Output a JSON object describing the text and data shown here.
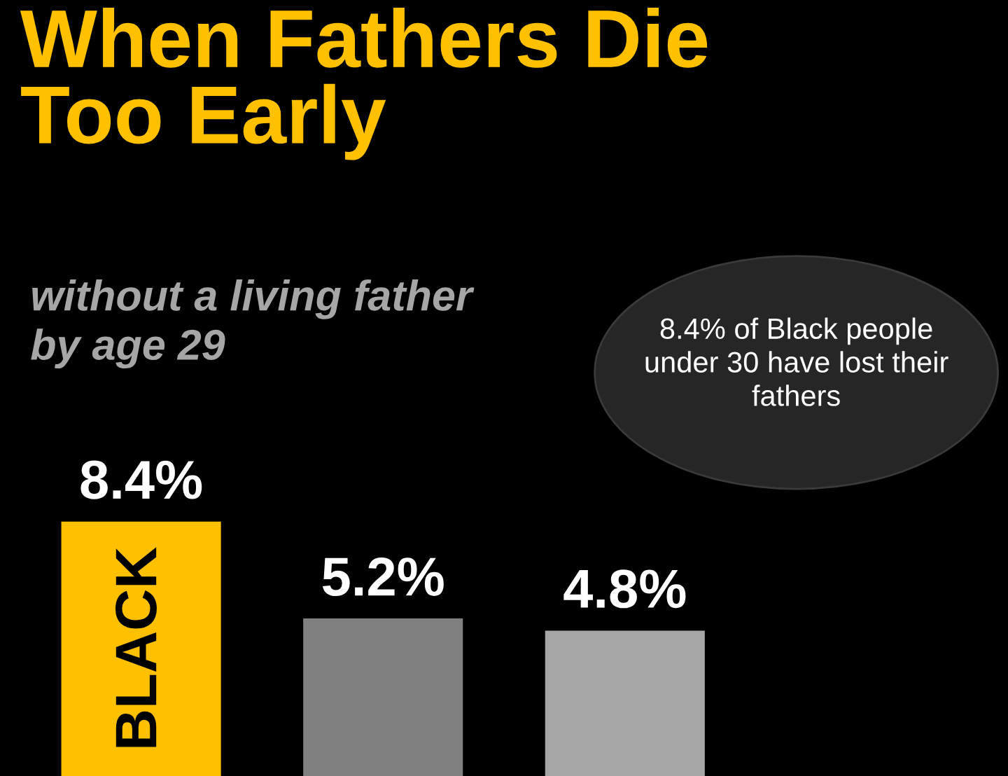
{
  "chart_data": {
    "type": "bar",
    "title": "When Fathers Die\nToo Early",
    "subtitle": "without a living father\nby age 29",
    "categories": [
      "BLACK",
      null,
      null
    ],
    "values": [
      8.4,
      5.2,
      4.8
    ],
    "colors": [
      "#ffc000",
      "#808080",
      "#a6a6a6"
    ],
    "value_labels": [
      "8.4%",
      "5.2%",
      "4.8%"
    ],
    "annotations": [
      "8.4% of Black people\nunder 30 have lost their\nfathers"
    ],
    "data_labels": false
  }
}
